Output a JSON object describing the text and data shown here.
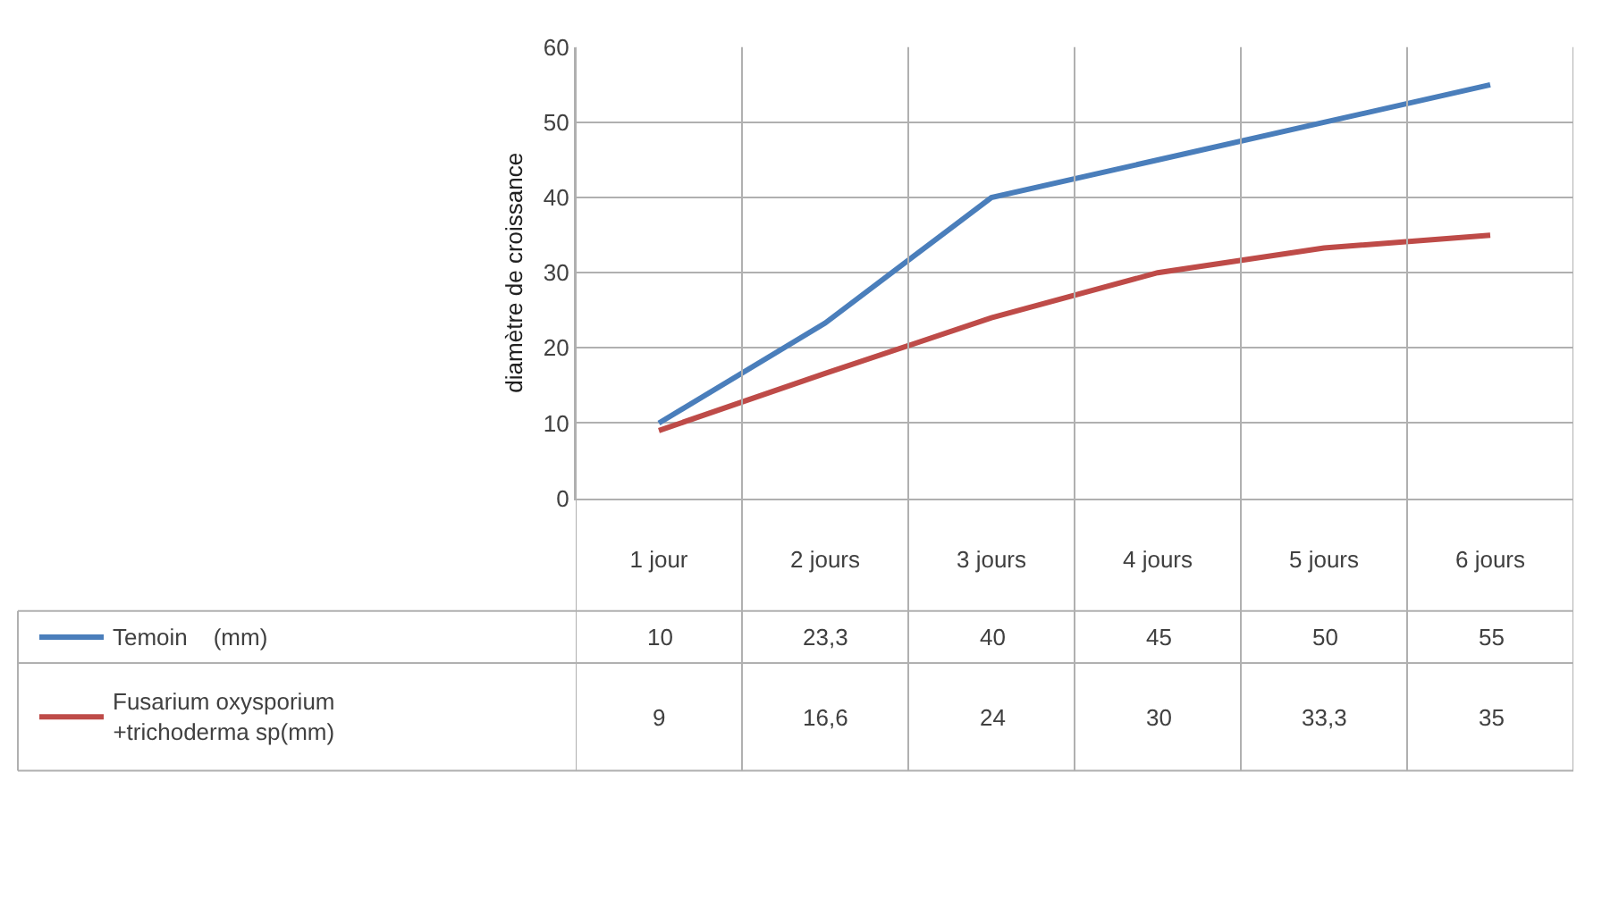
{
  "chart_data": {
    "type": "line",
    "ylabel": "diamètre de croissance",
    "categories": [
      "1 jour",
      "2 jours",
      "3 jours",
      "4 jours",
      "5 jours",
      "6 jours"
    ],
    "series": [
      {
        "name": "Temoin    (mm)",
        "color": "#4a7ebb",
        "values": [
          10,
          23.3,
          40,
          45,
          50,
          55
        ],
        "value_labels": [
          "10",
          "23,3",
          "40",
          "45",
          "50",
          "55"
        ]
      },
      {
        "name": "Fusarium oxysporium +trichoderma sp(mm)",
        "color": "#be4b48",
        "values": [
          9,
          16.6,
          24,
          30,
          33.3,
          35
        ],
        "value_labels": [
          "9",
          "16,6",
          "24",
          "30",
          "33,3",
          "35"
        ]
      }
    ],
    "ylim": [
      0,
      60
    ],
    "yticks": [
      0,
      10,
      20,
      30,
      40,
      50,
      60
    ],
    "grid": "y",
    "legend": "bottom left",
    "marker": "none",
    "line_style": "solid"
  }
}
